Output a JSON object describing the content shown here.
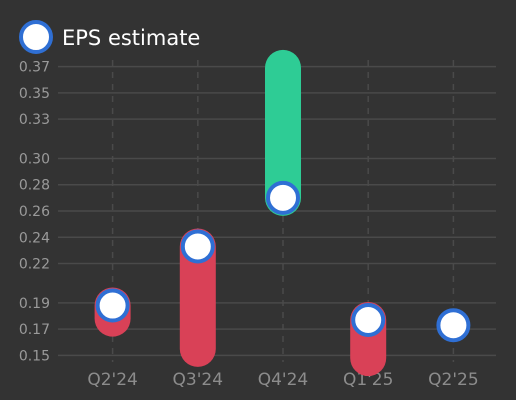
{
  "chart_data": {
    "type": "bar",
    "categories": [
      "Q2'24",
      "Q3'24",
      "Q4'24",
      "Q1'25",
      "Q2'25"
    ],
    "legend": {
      "label": "EPS estimate",
      "placement": "top-left"
    },
    "y_ticks": [
      "0.15",
      "0.17",
      "0.19",
      "0.22",
      "0.24",
      "0.26",
      "0.28",
      "0.30",
      "0.33",
      "0.35",
      "0.37"
    ],
    "ylim": [
      0.145,
      0.375
    ],
    "grid": true,
    "series": [
      {
        "name": "EPS estimate",
        "values": [
          0.188,
          0.233,
          0.27,
          0.177,
          0.173
        ]
      }
    ],
    "actual_eps": [
      0.178,
      0.155,
      0.369,
      0.148,
      null
    ],
    "colors": {
      "beat": "#2ecc95",
      "miss": "#d94157",
      "marker_fill": "#ffffff",
      "marker_stroke": "#2f6fd4",
      "background": "#333333",
      "grid": "#4a4a4a"
    }
  }
}
